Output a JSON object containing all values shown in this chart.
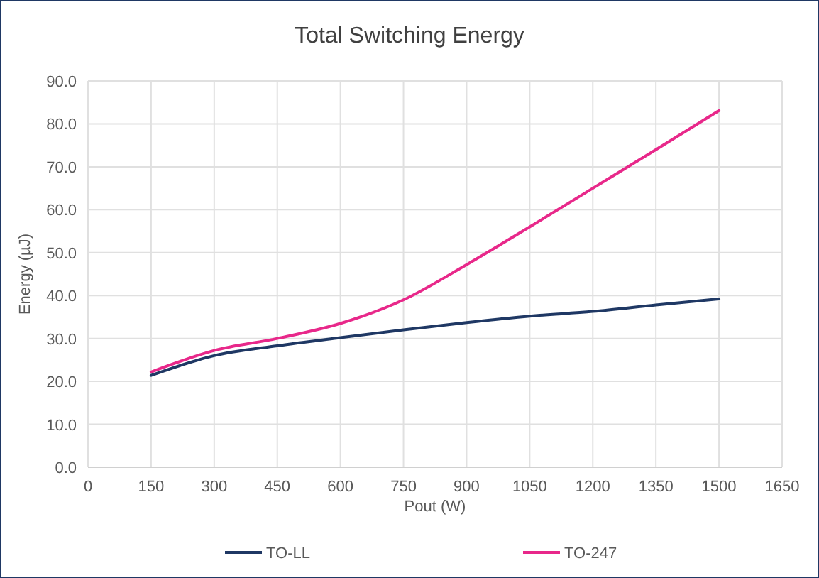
{
  "chart_data": {
    "type": "line",
    "title": "Total Switching Energy",
    "xlabel": "Pout (W)",
    "ylabel": "Energy (µJ)",
    "x": [
      150,
      300,
      450,
      600,
      750,
      900,
      1050,
      1200,
      1350,
      1500
    ],
    "series": [
      {
        "name": "TO-LL",
        "color": "#1f3864",
        "values": [
          21.4,
          26,
          28.3,
          30.2,
          32,
          33.7,
          35.2,
          36.3,
          37.8,
          39.2
        ]
      },
      {
        "name": "TO-247",
        "color": "#e8288a",
        "values": [
          22.2,
          27.2,
          30,
          33.5,
          39,
          47.2,
          56,
          65,
          74,
          83.1
        ]
      }
    ],
    "xlim": [
      0,
      1650
    ],
    "xticks": [
      0,
      150,
      300,
      450,
      600,
      750,
      900,
      1050,
      1200,
      1350,
      1500,
      1650
    ],
    "ylim": [
      0,
      90
    ],
    "yticks": [
      {
        "value": 0,
        "label": "0.0"
      },
      {
        "value": 10,
        "label": "10.0"
      },
      {
        "value": 20,
        "label": "20.0"
      },
      {
        "value": 30,
        "label": "30.0"
      },
      {
        "value": 40,
        "label": "40.0"
      },
      {
        "value": 50,
        "label": "50.0"
      },
      {
        "value": 60,
        "label": "60.0"
      },
      {
        "value": 70,
        "label": "70.0"
      },
      {
        "value": 80,
        "label": "80.0"
      },
      {
        "value": 90,
        "label": "90.0"
      }
    ],
    "grid": true,
    "legend": "bottom",
    "marker": "none",
    "line_style": "solid"
  }
}
